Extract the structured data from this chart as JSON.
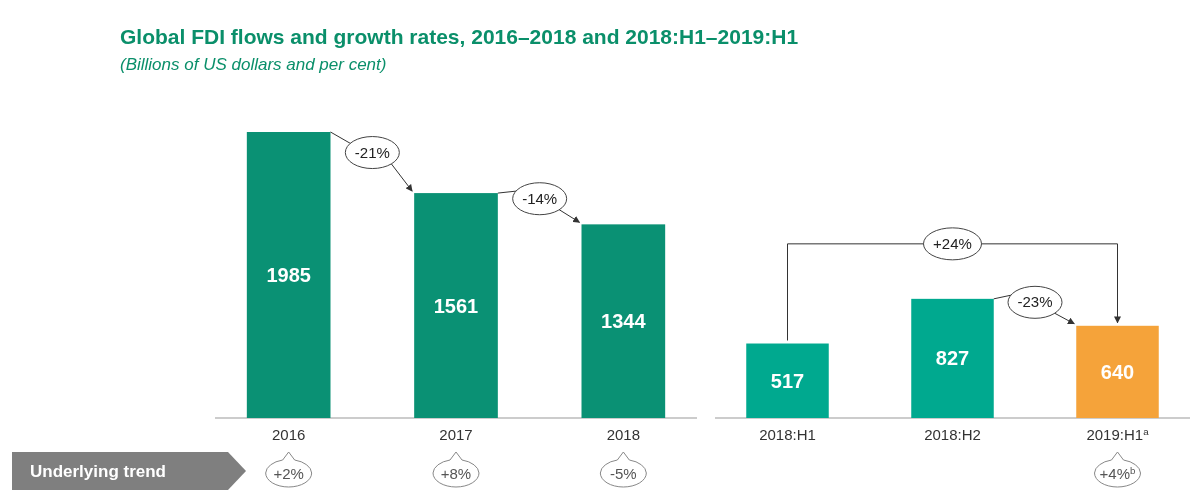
{
  "chart_data": [
    {
      "type": "bar",
      "title": "Global FDI flows and growth rates, 2016–2018 and 2018:H1–2019:H1",
      "subtitle": "(Billions of US dollars and per cent)",
      "categories": [
        "2016",
        "2017",
        "2018"
      ],
      "values": [
        1985,
        1561,
        1344
      ],
      "color": "#0a9174",
      "data_labels": true,
      "annotations": [
        "Underlying trend",
        "-21%",
        "-14%",
        "+2%",
        "+8%",
        "-5%"
      ]
    },
    {
      "type": "bar",
      "categories": [
        "2018:H1",
        "2018:H2",
        "2019:H1$^{a}$"
      ],
      "values": [
        517,
        827,
        640
      ],
      "colors": [
        "#00a98f",
        "#00a98f",
        "#f5a33a"
      ],
      "data_labels": true,
      "annotations": [
        "+24%",
        "-23%",
        "+4%$^{b}$"
      ]
    }
  ]
}
